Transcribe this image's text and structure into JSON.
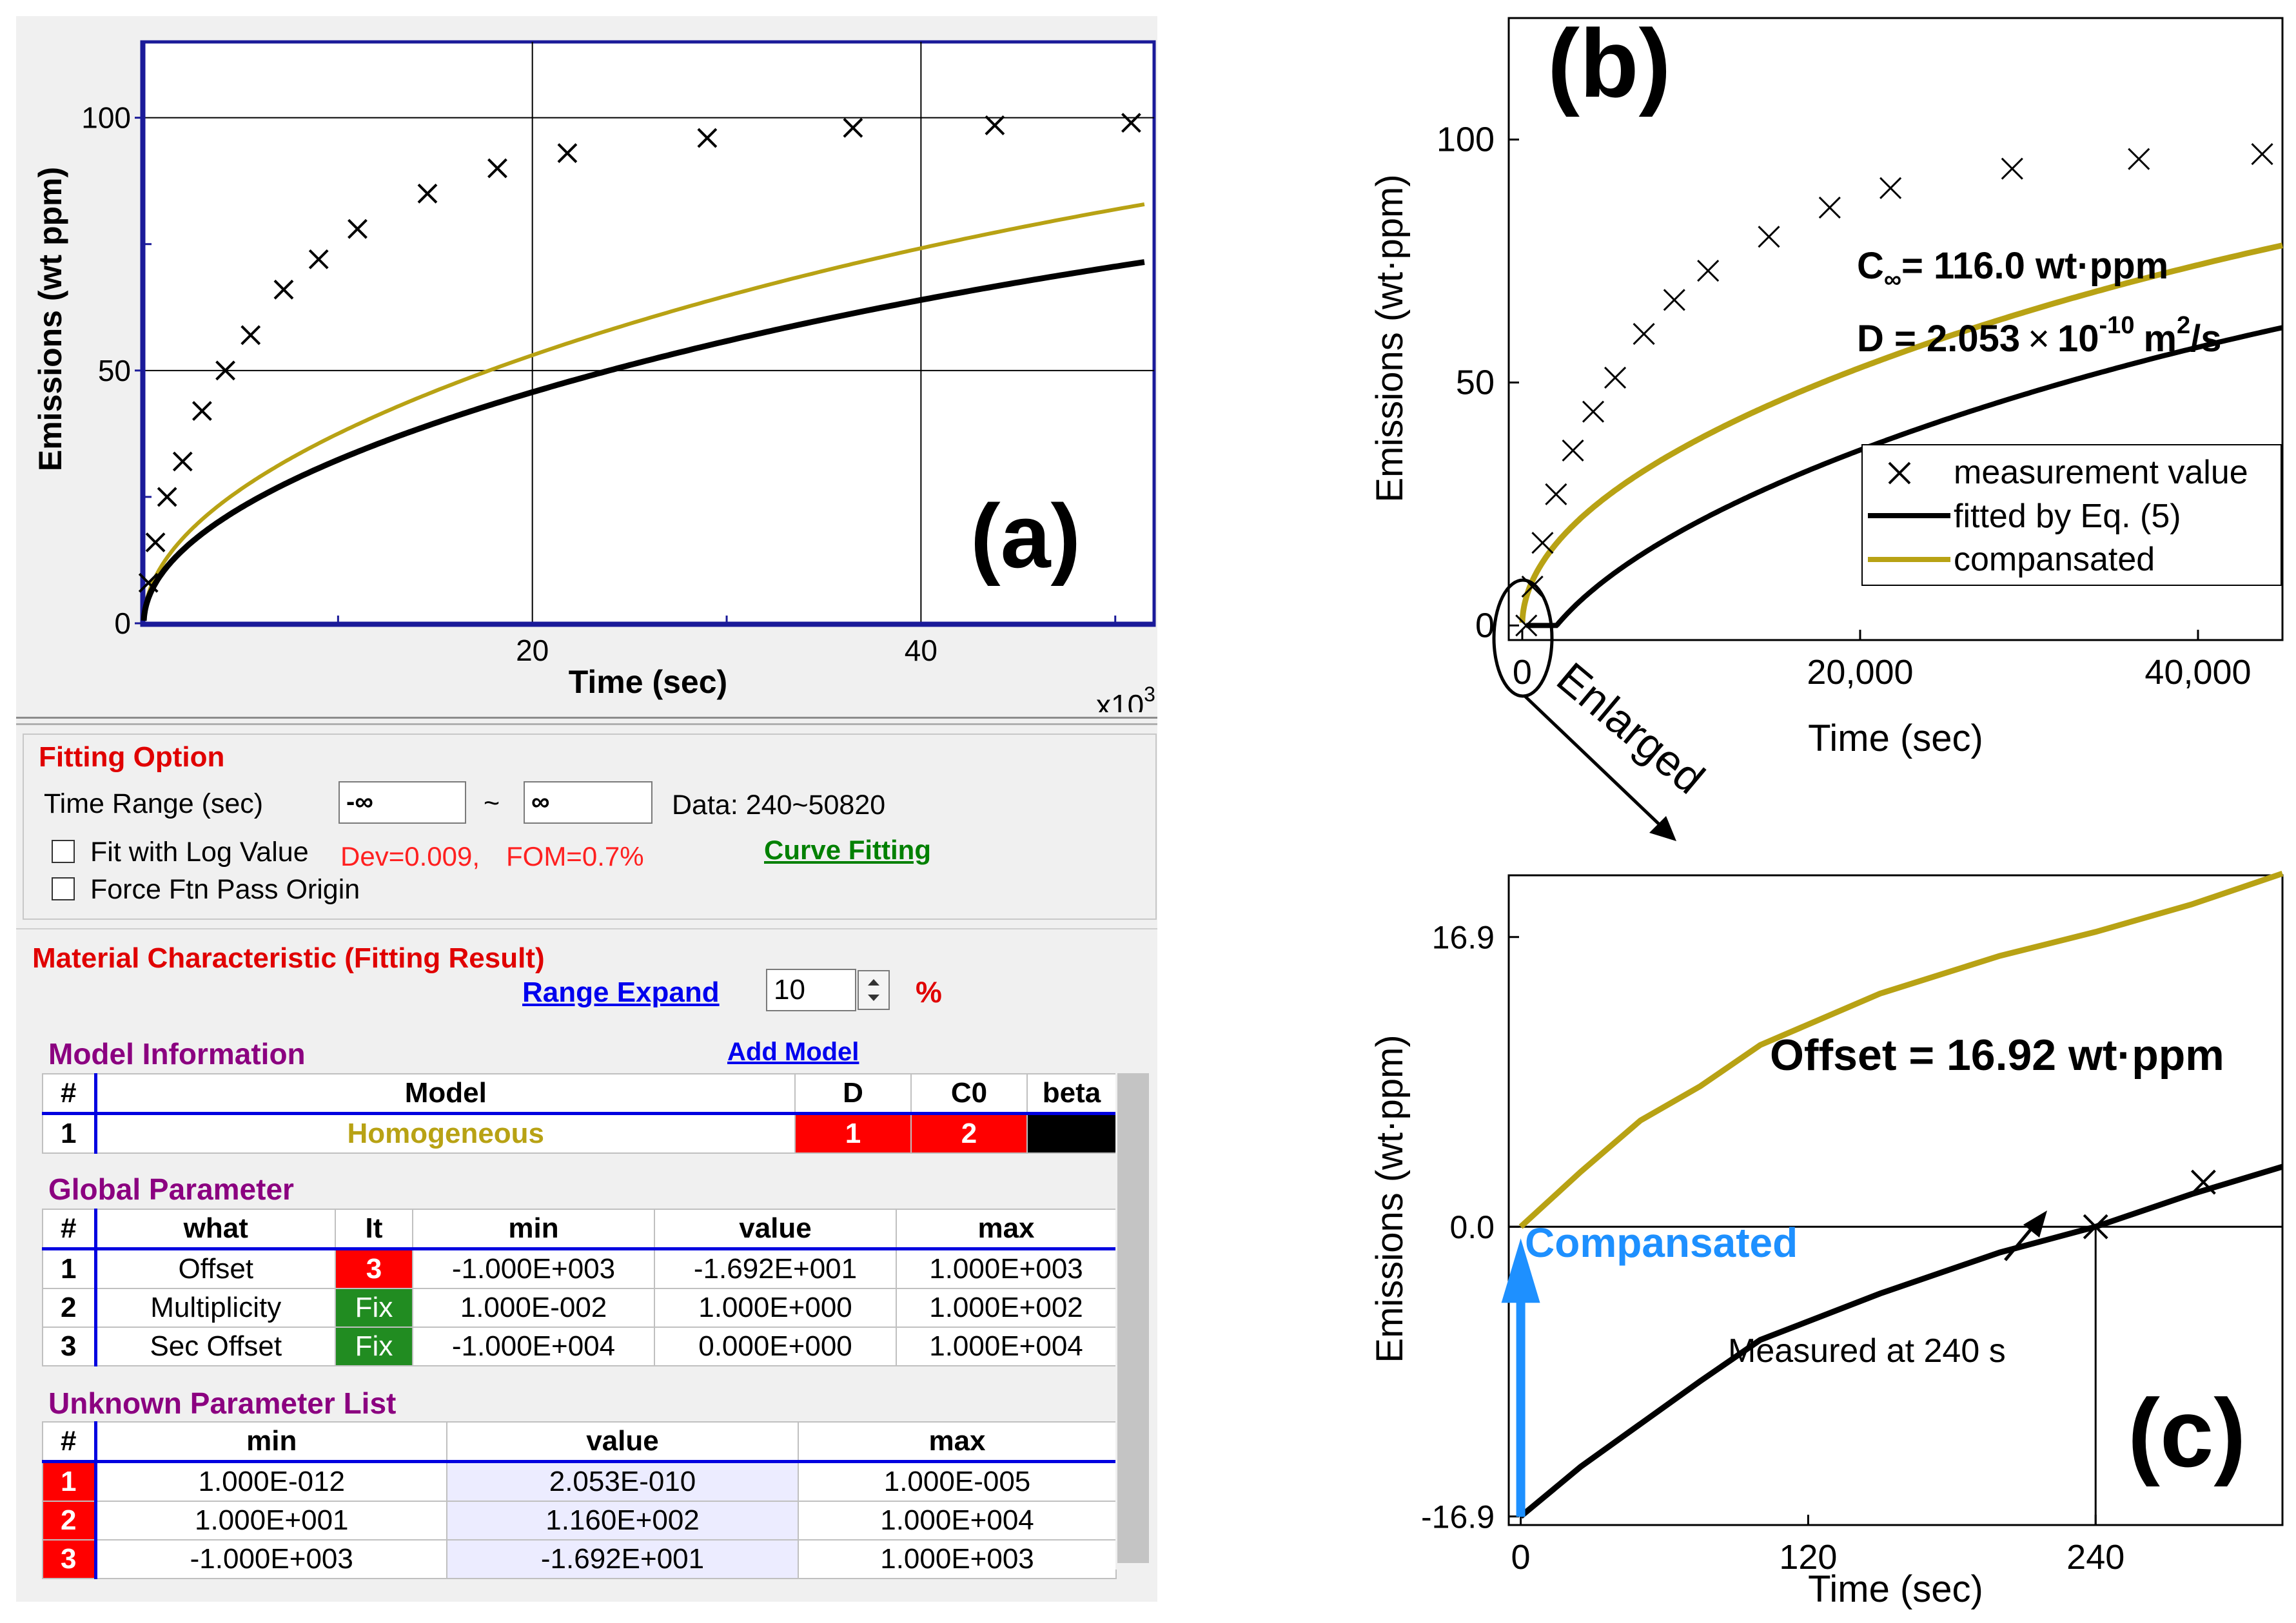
{
  "panel_a": {
    "label": "(a)",
    "xlabel": "Time (sec)",
    "ylabel": "Emissions (wt ppm)",
    "x_multiplier": "x10",
    "x_multiplier_exp": "3",
    "xticks": [
      "20",
      "40"
    ],
    "yticks": [
      "0",
      "50",
      "100"
    ]
  },
  "fitting_option": {
    "title": "Fitting Option",
    "time_range_label": "Time Range (sec)",
    "range_from": "-∞",
    "tilde": "~",
    "range_to": "∞",
    "data_range": "Data: 240~50820",
    "fit_log_label": "Fit with Log Value",
    "force_origin_label": "Force Ftn Pass Origin",
    "dev_text": "Dev=0.009,",
    "fom_text": "FOM=0.7%",
    "curve_fitting": "Curve Fitting"
  },
  "material": {
    "title": "Material Characteristic (Fitting Result)",
    "range_expand_label": "Range Expand",
    "range_expand_value": "10",
    "percent": "%"
  },
  "model_info": {
    "title": "Model Information",
    "add_model": "Add Model",
    "headers": [
      "#",
      "Model",
      "D",
      "C0",
      "beta"
    ],
    "rows": [
      {
        "num": "1",
        "model": "Homogeneous",
        "d": "1",
        "c0": "2",
        "beta": ""
      }
    ]
  },
  "global_param": {
    "title": "Global Parameter",
    "headers": [
      "#",
      "what",
      "It",
      "min",
      "value",
      "max"
    ],
    "rows": [
      {
        "num": "1",
        "what": "Offset",
        "it": "3",
        "min": "-1.000E+003",
        "value": "-1.692E+001",
        "max": "1.000E+003"
      },
      {
        "num": "2",
        "what": "Multiplicity",
        "it": "Fix",
        "min": "1.000E-002",
        "value": "1.000E+000",
        "max": "1.000E+002"
      },
      {
        "num": "3",
        "what": "Sec Offset",
        "it": "Fix",
        "min": "-1.000E+004",
        "value": "0.000E+000",
        "max": "1.000E+004"
      }
    ]
  },
  "unknown_param": {
    "title": "Unknown Parameter List",
    "headers": [
      "#",
      "min",
      "value",
      "max"
    ],
    "rows": [
      {
        "num": "1",
        "min": "1.000E-012",
        "value": "2.053E-010",
        "max": "1.000E-005"
      },
      {
        "num": "2",
        "min": "1.000E+001",
        "value": "1.160E+002",
        "max": "1.000E+004"
      },
      {
        "num": "3",
        "min": "-1.000E+003",
        "value": "-1.692E+001",
        "max": "1.000E+003"
      }
    ]
  },
  "panel_b": {
    "label": "(b)",
    "xlabel": "Time (sec)",
    "ylabel": "Emissions (wt·ppm)",
    "xticks": [
      "0",
      "20,000",
      "40,000"
    ],
    "yticks": [
      "0",
      "50",
      "100"
    ],
    "c_inf_symbol": "C",
    "c_inf_sub": "∞",
    "c_inf_text": "= 116.0 wt·ppm",
    "d_text": "D = 2.053",
    "d_times": "×",
    "d_base": "10",
    "d_exp": "-10",
    "d_unit": "m",
    "d_unit_exp": "2",
    "d_unit_tail": "/s",
    "legend": [
      "measurement value",
      "fitted by Eq. (5)",
      "compansated"
    ],
    "enlarged": "Enlarged"
  },
  "panel_c": {
    "label": "(c)",
    "xlabel": "Time (sec)",
    "ylabel": "Emissions (wt·ppm)",
    "xticks": [
      "0",
      "120",
      "240"
    ],
    "yticks": [
      "16.9",
      "0.0",
      "-16.9"
    ],
    "offset_text": "Offset = 16.92 wt·ppm",
    "compansated": "Compansated",
    "measured_at": "Measured at 240 s"
  },
  "colors": {
    "fit": "#000000",
    "comp": "#b8a214",
    "arrow": "#1e90ff",
    "red": "#ff0000",
    "green": "#218c21"
  },
  "chart_data": [
    {
      "id": "a",
      "type": "line",
      "title": "(a)",
      "xlabel": "Time (sec)",
      "ylabel": "Emissions (wt ppm)",
      "xlim": [
        0,
        52000
      ],
      "ylim": [
        0,
        115
      ],
      "series": [
        {
          "name": "measurement value",
          "style": "marker-x",
          "x": [
            240,
            600,
            1200,
            2000,
            3000,
            4200,
            5500,
            7200,
            9000,
            11000,
            14600,
            18200,
            21800,
            29000,
            36500,
            43800,
            50820
          ],
          "y": [
            8,
            16,
            25,
            32,
            42,
            50,
            57,
            66,
            72,
            78,
            85,
            90,
            93,
            96,
            98,
            98.5,
            99
          ]
        },
        {
          "name": "fitted",
          "style": "line",
          "C_inf": 100,
          "D": 2.053e-10,
          "offset": 0
        },
        {
          "name": "compansated",
          "style": "line",
          "C_inf": 116,
          "D": 2.053e-10,
          "offset": 0
        }
      ]
    },
    {
      "id": "b",
      "type": "line",
      "title": "(b)",
      "xlabel": "Time (sec)",
      "ylabel": "Emissions (wt·ppm)",
      "xlim": [
        -800,
        45000
      ],
      "ylim": [
        -3,
        125
      ],
      "series": [
        {
          "name": "measurement value",
          "style": "marker-x",
          "x": [
            240,
            600,
            1200,
            2000,
            3000,
            4200,
            5500,
            7200,
            9000,
            11000,
            14600,
            18200,
            21800,
            29000,
            36500,
            43800
          ],
          "y": [
            0,
            8,
            17,
            27,
            36,
            44,
            51,
            60,
            67,
            73,
            80,
            86,
            90,
            94,
            96,
            97
          ]
        },
        {
          "name": "fitted by Eq. (5)",
          "style": "line",
          "C_inf": 116,
          "D": 2.053e-10,
          "offset": -16.92
        },
        {
          "name": "compansated",
          "style": "line",
          "C_inf": 116,
          "D": 2.053e-10,
          "offset": 0
        }
      ]
    },
    {
      "id": "c",
      "type": "line",
      "title": "(c)",
      "xlabel": "Time (sec)",
      "ylabel": "Emissions (wt·ppm)",
      "xlim": [
        -5,
        318
      ],
      "ylim": [
        -17.4,
        20.5
      ],
      "series": [
        {
          "name": "measurement value",
          "style": "marker-x",
          "x": [
            240,
            285
          ],
          "y": [
            0,
            2.6
          ]
        },
        {
          "name": "fitted",
          "style": "line",
          "x": [
            0,
            25,
            50,
            75,
            100,
            150,
            200,
            240,
            280,
            318
          ],
          "y": [
            -16.9,
            -14,
            -11.5,
            -9,
            -6.6,
            -3.9,
            -1.5,
            0,
            1.9,
            3.5
          ]
        },
        {
          "name": "compansated",
          "style": "line",
          "x": [
            0,
            25,
            50,
            75,
            100,
            150,
            200,
            240,
            280,
            318
          ],
          "y": [
            0,
            3.2,
            6.2,
            8.2,
            10.6,
            13.6,
            15.8,
            17.2,
            18.8,
            20.6
          ]
        }
      ],
      "annotations": {
        "offset": 16.92,
        "hline": 0,
        "vline_x": 240
      }
    }
  ]
}
